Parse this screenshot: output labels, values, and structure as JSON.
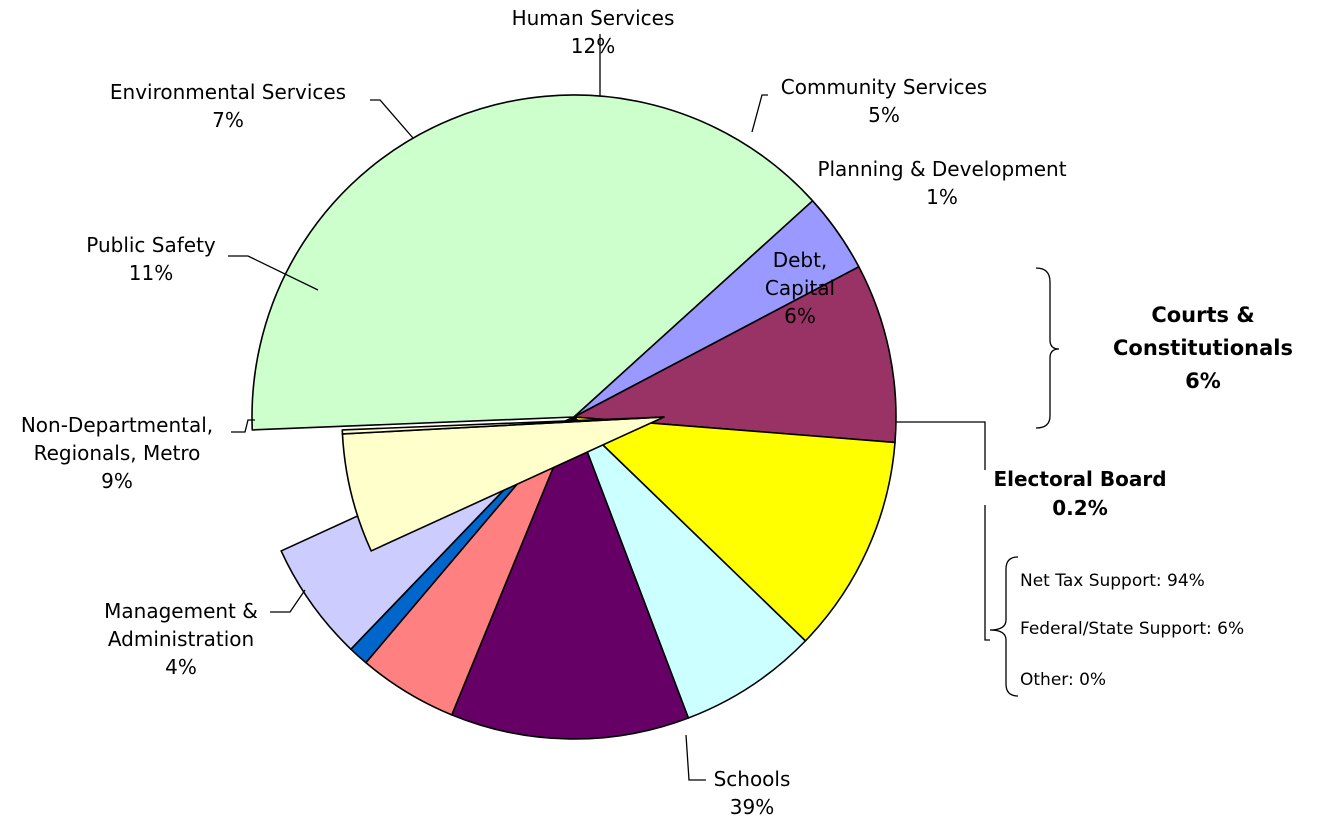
{
  "chart_data": {
    "type": "pie",
    "title": "",
    "unit": "%",
    "slices": [
      {
        "name": "Schools",
        "value": 39,
        "label": "Schools",
        "pct_label": "39%",
        "color": "#CCFFCC"
      },
      {
        "name": "Management & Administration",
        "value": 4,
        "label_lines": [
          "Management &",
          "Administration"
        ],
        "pct_label": "4%",
        "color": "#9999FF"
      },
      {
        "name": "Non-Departmental, Regionals, Metro",
        "value": 9,
        "label_lines": [
          "Non-Departmental,",
          "Regionals, Metro"
        ],
        "pct_label": "9%",
        "color": "#993366"
      },
      {
        "name": "Public Safety",
        "value": 11,
        "label": "Public Safety",
        "pct_label": "11%",
        "color": "#FFFF00"
      },
      {
        "name": "Environmental Services",
        "value": 7,
        "label": "Environmental Services",
        "pct_label": "7%",
        "color": "#CCFFFF"
      },
      {
        "name": "Human Services",
        "value": 12,
        "label": "Human Services",
        "pct_label": "12%",
        "color": "#660066"
      },
      {
        "name": "Community Services",
        "value": 5,
        "label": "Community Services",
        "pct_label": "5%",
        "color": "#FF8080"
      },
      {
        "name": "Planning & Development",
        "value": 1,
        "label": "Planning & Development",
        "pct_label": "1%",
        "color": "#0066CC"
      },
      {
        "name": "Debt, Capital",
        "value": 6,
        "label_lines": [
          "Debt,",
          "Capital"
        ],
        "pct_label": "6%",
        "color": "#CCCCFF"
      },
      {
        "name": "Courts & Constitutionals",
        "value": 6,
        "label_lines": [
          "Courts &",
          "Constitutionals"
        ],
        "pct_label": "6%",
        "color": "#FFFFCC",
        "exploded": true
      },
      {
        "name": "Electoral Board",
        "value": 0.2,
        "label": "Electoral Board",
        "pct_label": "0.2%",
        "color": "#FFFFCC",
        "exploded": true
      }
    ],
    "breakdown": [
      "Net Tax Support: 94%",
      "Federal/State Support: 6%",
      "Other: 0%"
    ],
    "legend": "none"
  }
}
